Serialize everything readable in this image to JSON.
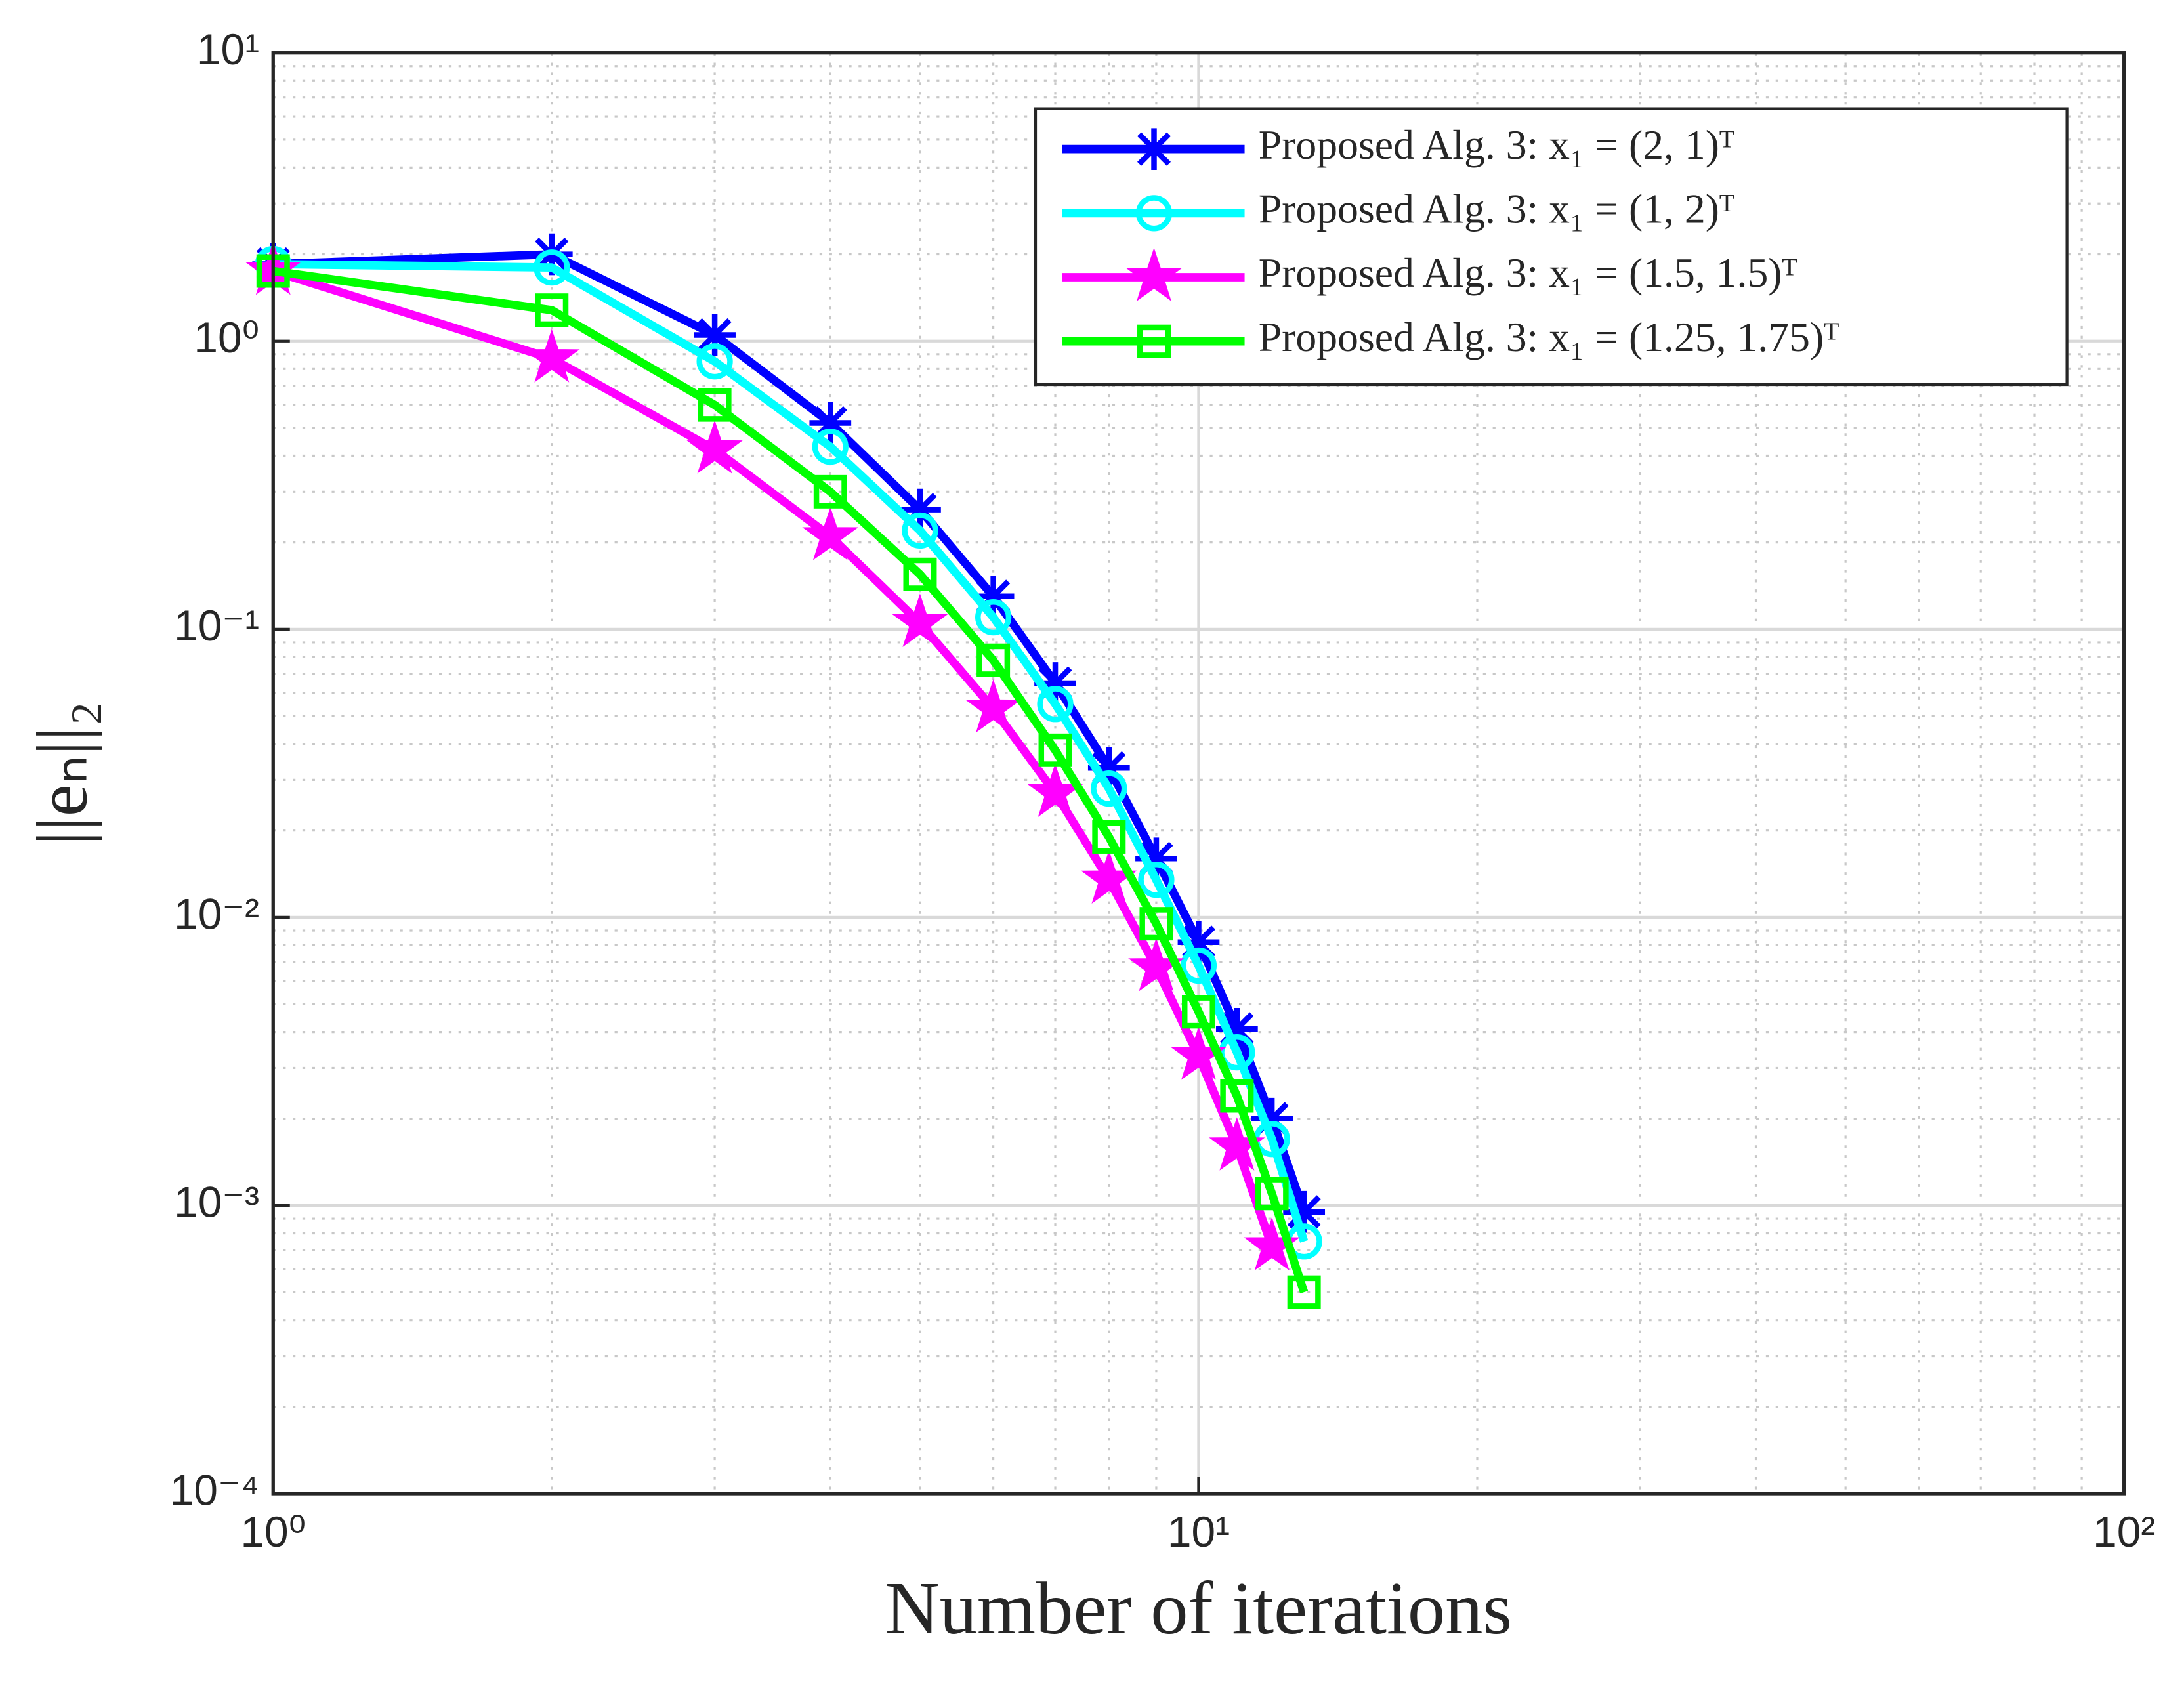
{
  "chart_data": {
    "type": "line",
    "xlabel": "Number of iterations",
    "ylabel": "||eₙ||₂",
    "x": [
      1,
      2,
      3,
      4,
      5,
      6,
      7,
      8,
      9,
      10,
      11,
      12,
      13
    ],
    "series": [
      {
        "name": "Proposed Alg. 3: x₁ = (2, 1)ᵀ",
        "color": "#0000ff",
        "marker": "asterisk",
        "values": [
          1.85,
          2.0,
          1.05,
          0.52,
          0.26,
          0.13,
          0.065,
          0.033,
          0.016,
          0.0082,
          0.0041,
          0.002,
          0.00095
        ]
      },
      {
        "name": "Proposed Alg. 3: x₁ = (1, 2)ᵀ",
        "color": "#00ffff",
        "marker": "circle",
        "values": [
          1.85,
          1.8,
          0.85,
          0.43,
          0.22,
          0.11,
          0.055,
          0.028,
          0.0135,
          0.0068,
          0.0034,
          0.0017,
          0.00075
        ]
      },
      {
        "name": "Proposed Alg. 3: x₁ = (1.5, 1.5)ᵀ",
        "color": "#ff00ff",
        "marker": "star",
        "values": [
          1.75,
          0.87,
          0.42,
          0.21,
          0.105,
          0.053,
          0.027,
          0.0135,
          0.0067,
          0.0033,
          0.0016,
          0.00072,
          null
        ]
      },
      {
        "name": "Proposed Alg. 3: x₁ = (1.25, 1.75)ᵀ",
        "color": "#00ff00",
        "marker": "square",
        "values": [
          1.75,
          1.28,
          0.6,
          0.3,
          0.155,
          0.078,
          0.038,
          0.019,
          0.0095,
          0.0047,
          0.0024,
          0.0011,
          0.0005
        ]
      }
    ],
    "xscale": "log",
    "yscale": "log",
    "xlim": [
      1,
      100
    ],
    "ylim": [
      0.0001,
      10
    ],
    "xticks": [
      {
        "value": 1,
        "label": "10⁰"
      },
      {
        "value": 10,
        "label": "10¹"
      },
      {
        "value": 100,
        "label": "10²"
      }
    ],
    "yticks": [
      {
        "value": 0.0001,
        "label": "10⁻⁴"
      },
      {
        "value": 0.001,
        "label": "10⁻³"
      },
      {
        "value": 0.01,
        "label": "10⁻²"
      },
      {
        "value": 0.1,
        "label": "10⁻¹"
      },
      {
        "value": 1,
        "label": "10⁰"
      },
      {
        "value": 10,
        "label": "10¹"
      }
    ],
    "grid": true,
    "minor_grid": true,
    "legend": "upper right"
  }
}
